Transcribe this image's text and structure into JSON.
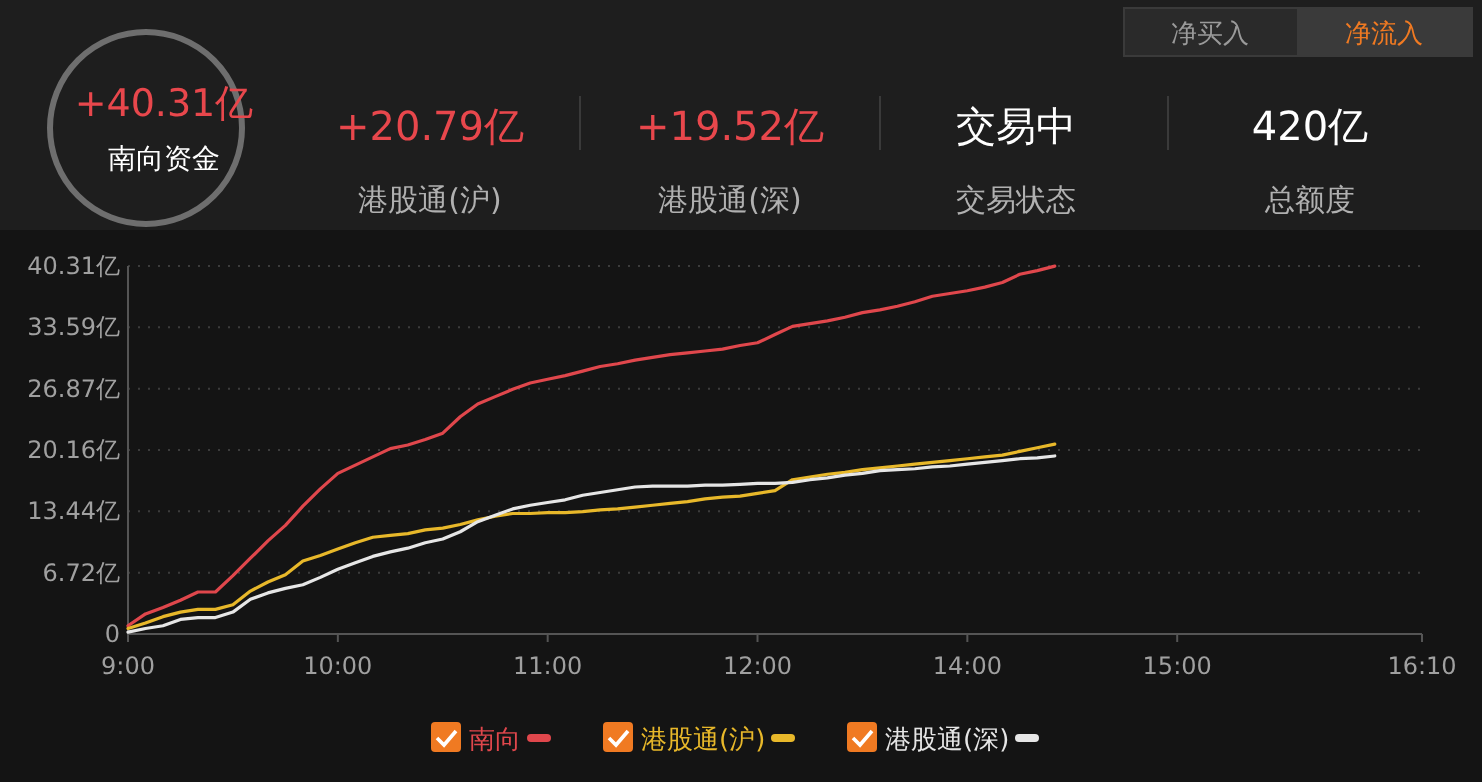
{
  "chart_data": {
    "type": "line",
    "annotations": [
      "净买入",
      "净流入",
      "+40.31亿",
      "南向资金",
      "+20.79亿",
      "港股通(沪)",
      "+19.52亿",
      "港股通(深)",
      "交易中",
      "交易状态",
      "420亿",
      "总额度"
    ],
    "categories": [
      "9:00",
      null,
      null,
      null,
      null,
      null,
      null,
      null,
      null,
      null,
      null,
      null,
      "10:00",
      null,
      null,
      null,
      null,
      null,
      null,
      null,
      null,
      null,
      null,
      null,
      "11:00",
      null,
      null,
      null,
      null,
      null,
      null,
      null,
      null,
      null,
      null,
      null,
      "12:00",
      null,
      null,
      null,
      null,
      null,
      null,
      null,
      null,
      null,
      null,
      null,
      "14:00",
      null,
      null,
      null,
      null,
      null,
      null,
      null,
      null,
      null,
      null,
      null,
      "15:00",
      null,
      null,
      null,
      null,
      null,
      null,
      null,
      null,
      null,
      null,
      null,
      null,
      null,
      "16:10"
    ],
    "ylim": [
      0,
      40.31
    ],
    "yticks": [
      0,
      {
        "value": 6.72,
        "label": "6.72亿"
      },
      {
        "value": 13.44,
        "label": "13.44亿"
      },
      {
        "value": 20.16,
        "label": "20.16亿"
      },
      {
        "value": 26.87,
        "label": "26.87亿"
      },
      {
        "value": 33.59,
        "label": "33.59亿"
      },
      {
        "value": 40.31,
        "label": "40.31亿"
      }
    ],
    "grid": "y",
    "legend": "bottom",
    "marker": "none",
    "line_style": "solid",
    "series": [
      {
        "name": "南向",
        "color": "#e0474c",
        "values": [
          0.9,
          2.2,
          2.9,
          3.7,
          4.6,
          4.6,
          6.4,
          8.3,
          10.2,
          11.9,
          14.0,
          15.9,
          17.6,
          18.5,
          19.4,
          20.3,
          20.7,
          21.3,
          22.0,
          23.8,
          25.2,
          26.0,
          26.8,
          27.5,
          27.9,
          28.3,
          28.8,
          29.3,
          29.6,
          30.0,
          30.3,
          30.6,
          30.8,
          31.0,
          31.2,
          31.6,
          31.9,
          32.8,
          33.7,
          34.0,
          34.3,
          34.7,
          35.2,
          35.5,
          35.9,
          36.4,
          37.0,
          37.3,
          37.6,
          38.0,
          38.5,
          39.4,
          39.8,
          40.3,
          null,
          null,
          null,
          null,
          null,
          null,
          null,
          null,
          null,
          null,
          null,
          null,
          null,
          null,
          null,
          null,
          null,
          null,
          null,
          null,
          null
        ]
      },
      {
        "name": "港股通(沪)",
        "color": "#e8b82a",
        "values": [
          0.6,
          1.2,
          1.9,
          2.4,
          2.7,
          2.7,
          3.2,
          4.7,
          5.7,
          6.5,
          8.0,
          8.6,
          9.3,
          10.0,
          10.6,
          10.8,
          11.0,
          11.4,
          11.6,
          12.0,
          12.5,
          12.9,
          13.2,
          13.2,
          13.3,
          13.3,
          13.4,
          13.6,
          13.7,
          13.9,
          14.1,
          14.3,
          14.5,
          14.8,
          15.0,
          15.1,
          15.4,
          15.7,
          16.9,
          17.2,
          17.5,
          17.7,
          18.0,
          18.2,
          18.4,
          18.6,
          18.8,
          19.0,
          19.2,
          19.4,
          19.6,
          20.0,
          20.4,
          20.8,
          null,
          null,
          null,
          null,
          null,
          null,
          null,
          null,
          null,
          null,
          null,
          null,
          null,
          null,
          null,
          null,
          null,
          null,
          null,
          null,
          null
        ]
      },
      {
        "name": "港股通(深)",
        "color": "#e6e6e6",
        "values": [
          0.2,
          0.6,
          0.9,
          1.6,
          1.8,
          1.8,
          2.4,
          3.8,
          4.5,
          5.0,
          5.4,
          6.2,
          7.1,
          7.8,
          8.5,
          9.0,
          9.4,
          10.0,
          10.4,
          11.2,
          12.3,
          13.0,
          13.7,
          14.1,
          14.4,
          14.7,
          15.2,
          15.5,
          15.8,
          16.1,
          16.2,
          16.2,
          16.2,
          16.3,
          16.3,
          16.4,
          16.5,
          16.5,
          16.6,
          16.9,
          17.1,
          17.4,
          17.6,
          17.9,
          18.0,
          18.1,
          18.3,
          18.4,
          18.6,
          18.8,
          19.0,
          19.2,
          19.3,
          19.5,
          null,
          null,
          null,
          null,
          null,
          null,
          null,
          null,
          null,
          null,
          null,
          null,
          null,
          null,
          null,
          null,
          null,
          null,
          null,
          null,
          null
        ]
      }
    ]
  }
}
